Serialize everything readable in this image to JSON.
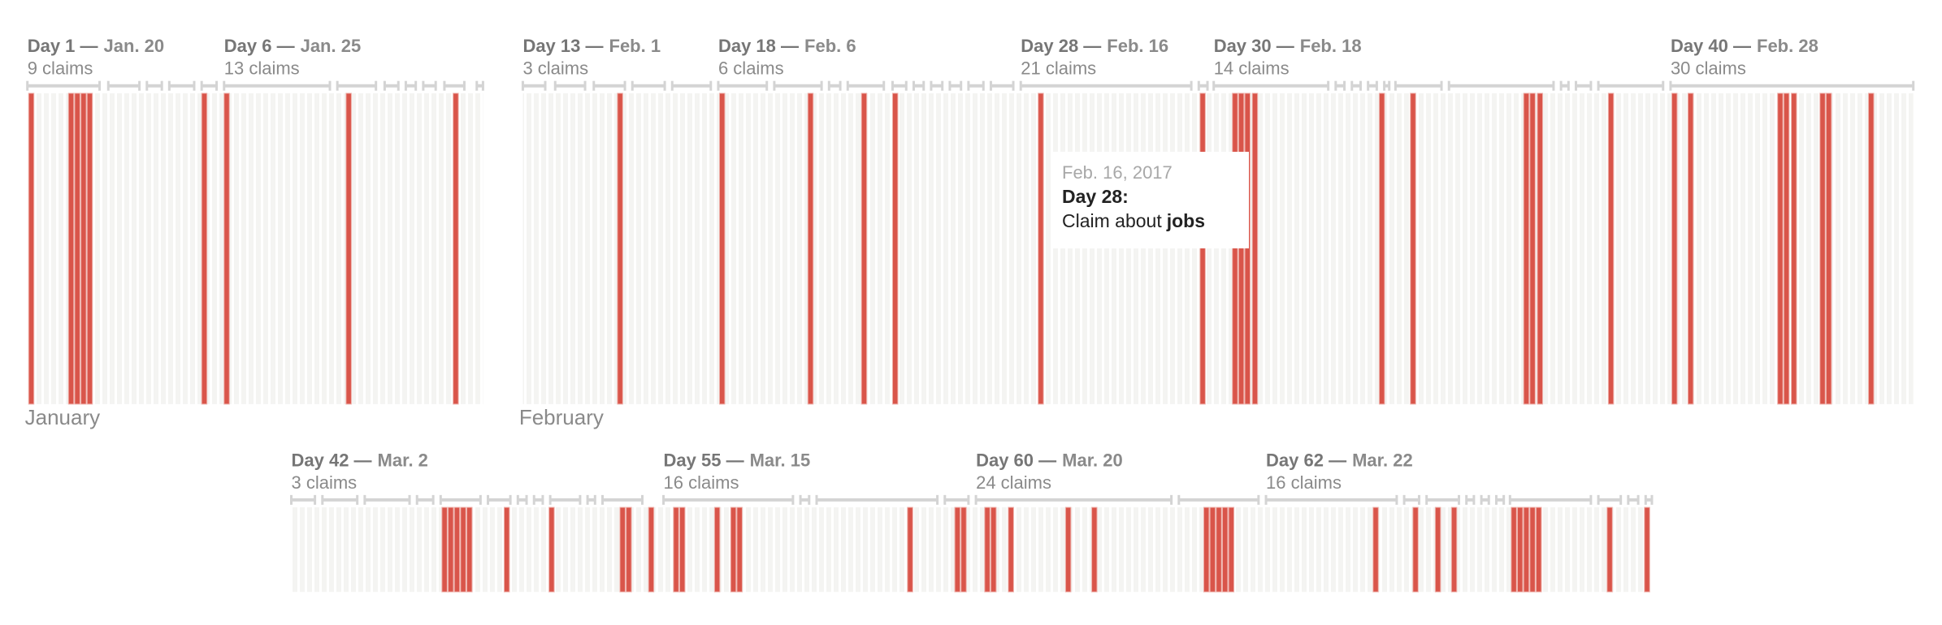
{
  "months": [
    "January",
    "February"
  ],
  "days": [
    {
      "title": "Day 1 —",
      "date": "Jan. 20",
      "claims": "9 claims"
    },
    {
      "title": "Day 6 —",
      "date": "Jan. 25",
      "claims": "13 claims"
    },
    {
      "title": "Day 13 —",
      "date": "Feb. 1",
      "claims": "3 claims"
    },
    {
      "title": "Day 18 —",
      "date": "Feb. 6",
      "claims": "6 claims"
    },
    {
      "title": "Day 28 —",
      "date": "Feb. 16",
      "claims": "21 claims"
    },
    {
      "title": "Day 30 —",
      "date": "Feb. 18",
      "claims": "14 claims"
    },
    {
      "title": "Day 40 —",
      "date": "Feb. 28",
      "claims": "30 claims"
    },
    {
      "title": "Day 42 —",
      "date": "Mar. 2",
      "claims": "3 claims"
    },
    {
      "title": "Day 55 —",
      "date": "Mar. 15",
      "claims": "16 claims"
    },
    {
      "title": "Day 60 —",
      "date": "Mar. 20",
      "claims": "24 claims"
    },
    {
      "title": "Day 62 —",
      "date": "Mar. 22",
      "claims": "16 claims"
    }
  ],
  "tooltip": {
    "date": "Feb. 16, 2017",
    "title": "Day 28:",
    "text": "Claim about",
    "topic": "jobs"
  }
}
